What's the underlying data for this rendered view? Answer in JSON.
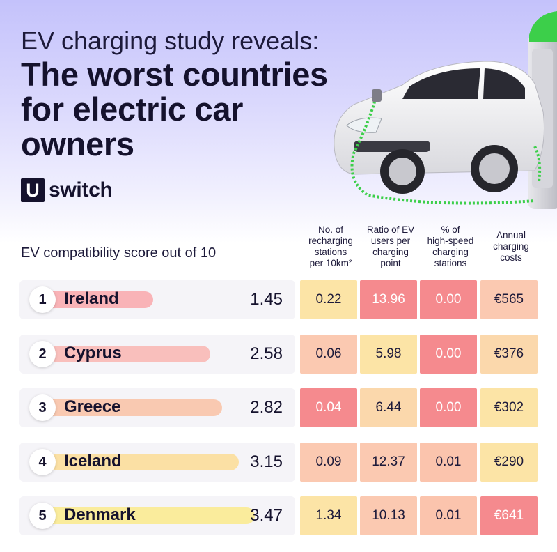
{
  "header": {
    "subtitle": "EV charging study reveals:",
    "title_lines": [
      "The worst countries",
      "for electric car",
      "owners"
    ]
  },
  "brand": {
    "mark": "U",
    "text": "switch"
  },
  "chart_data": {
    "type": "table",
    "score_header": "EV compatibility score out of 10",
    "columns": [
      {
        "lines": [
          "No. of",
          "recharging",
          "stations",
          "per 10km²"
        ]
      },
      {
        "lines": [
          "Ratio of EV",
          "users per",
          "charging",
          "point"
        ]
      },
      {
        "lines": [
          "% of",
          "high-speed",
          "charging",
          "stations"
        ]
      },
      {
        "lines": [
          "Annual",
          "charging",
          "costs"
        ]
      }
    ],
    "score_max": 10,
    "rows": [
      {
        "rank": "1",
        "country": "Ireland",
        "score": "1.45",
        "score_value": 1.45,
        "cells": [
          "0.22",
          "13.96",
          "0.00",
          "€565"
        ]
      },
      {
        "rank": "2",
        "country": "Cyprus",
        "score": "2.58",
        "score_value": 2.58,
        "cells": [
          "0.06",
          "5.98",
          "0.00",
          "€376"
        ]
      },
      {
        "rank": "3",
        "country": "Greece",
        "score": "2.82",
        "score_value": 2.82,
        "cells": [
          "0.04",
          "6.44",
          "0.00",
          "€302"
        ]
      },
      {
        "rank": "4",
        "country": "Iceland",
        "score": "3.15",
        "score_value": 3.15,
        "cells": [
          "0.09",
          "12.37",
          "0.01",
          "€290"
        ]
      },
      {
        "rank": "5",
        "country": "Denmark",
        "score": "3.47",
        "score_value": 3.47,
        "cells": [
          "1.34",
          "10.13",
          "0.01",
          "€641"
        ]
      }
    ],
    "cell_colors": [
      [
        "#fce4a6",
        "#f58a8e",
        "#f58a8e",
        "#fbc9b1"
      ],
      [
        "#fbc9b1",
        "#fce4a6",
        "#f58a8e",
        "#fbd8ac"
      ],
      [
        "#f58a8e",
        "#fbd8ac",
        "#f58a8e",
        "#fce4a6"
      ],
      [
        "#fbc9b1",
        "#fbc9b1",
        "#fbc4ad",
        "#fce4a6"
      ],
      [
        "#fce4a6",
        "#fbc9b1",
        "#fbc4ad",
        "#f58a8e"
      ]
    ],
    "bar_colors": [
      "#f9b3b7",
      "#f9bfbc",
      "#f9c9b1",
      "#fbe0a4",
      "#faec9c"
    ]
  }
}
